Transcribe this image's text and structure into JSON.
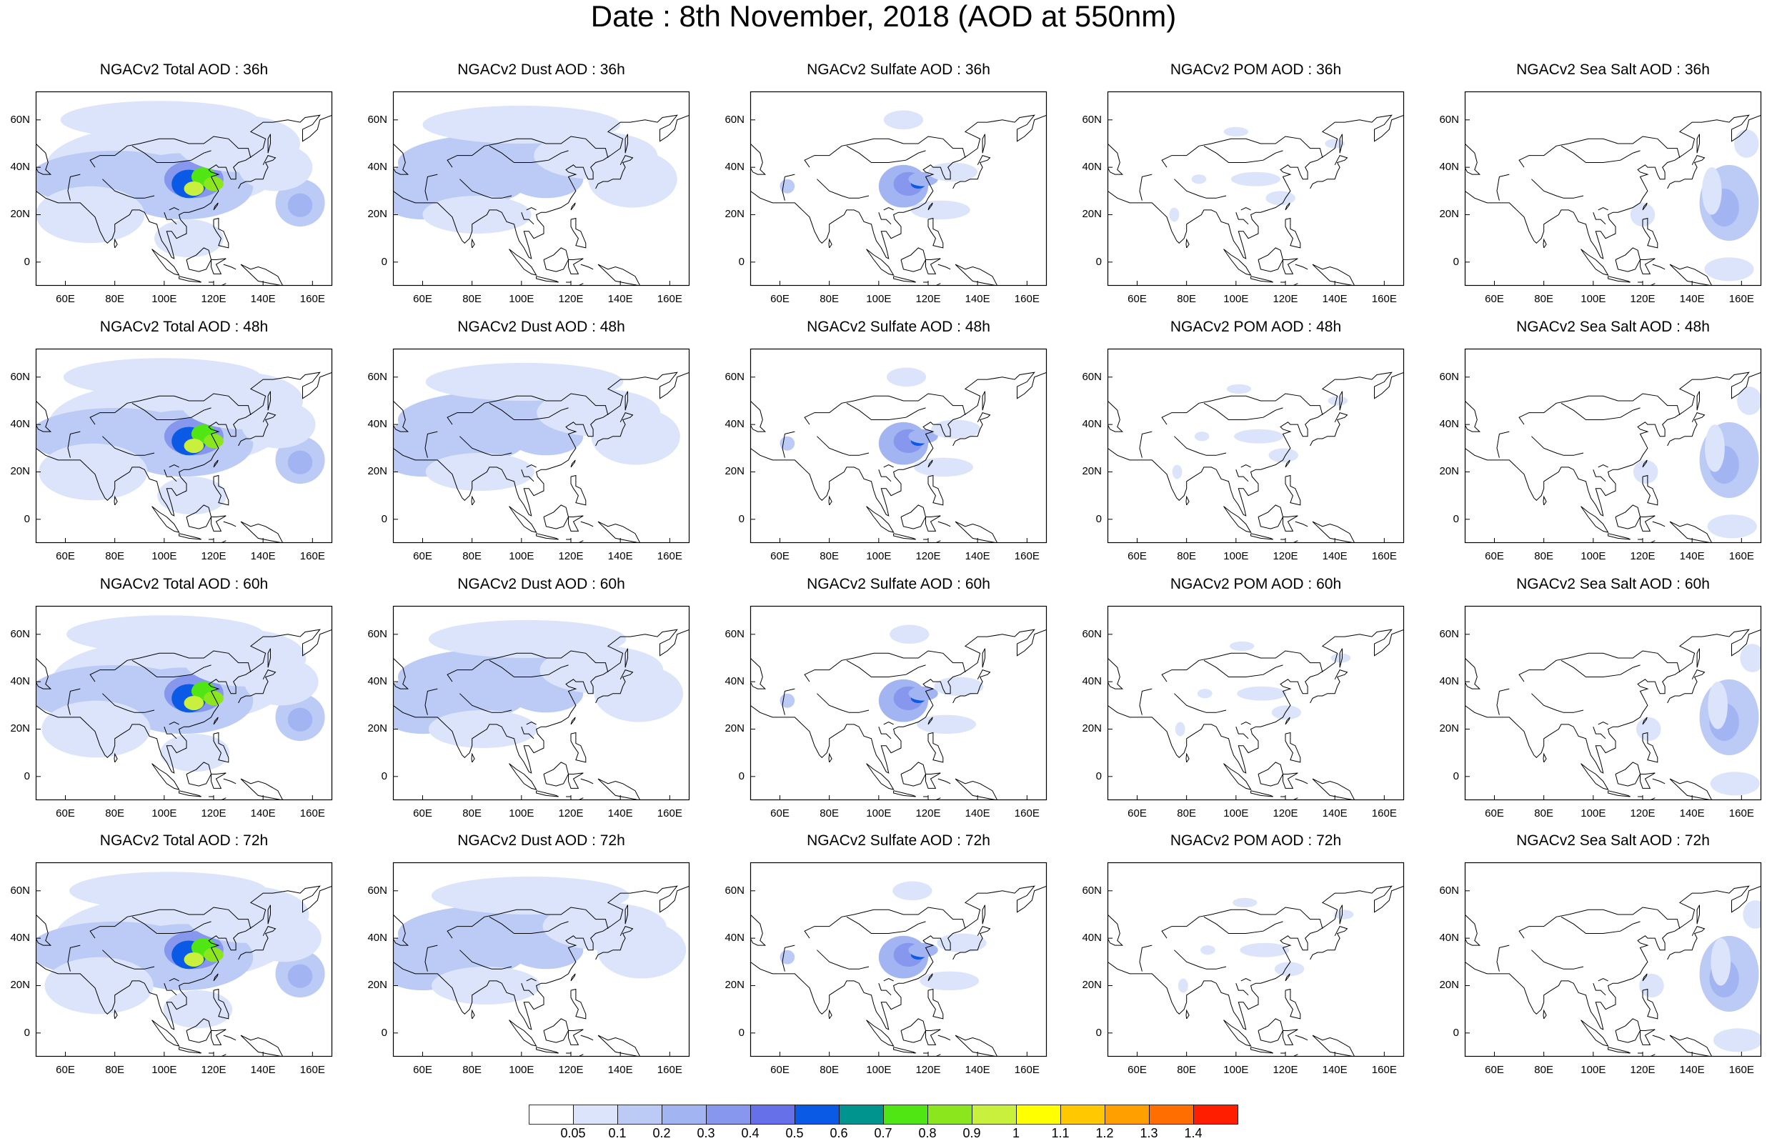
{
  "title": "Date : 8th November, 2018 (AOD at 550nm)",
  "columns": [
    "Total",
    "Dust",
    "Sulfate",
    "POM",
    "Sea Salt"
  ],
  "panels": [
    [
      "NGACv2 Total AOD : 36h",
      "NGACv2 Dust AOD : 36h",
      "NGACv2 Sulfate AOD : 36h",
      "NGACv2 POM AOD : 36h",
      "NGACv2 Sea Salt AOD : 36h"
    ],
    [
      "NGACv2 Total AOD : 48h",
      "NGACv2 Dust AOD : 48h",
      "NGACv2 Sulfate AOD : 48h",
      "NGACv2 POM AOD : 48h",
      "NGACv2 Sea Salt AOD : 48h"
    ],
    [
      "NGACv2 Total AOD : 60h",
      "NGACv2 Dust AOD : 60h",
      "NGACv2 Sulfate AOD : 60h",
      "NGACv2 POM AOD : 60h",
      "NGACv2 Sea Salt AOD : 60h"
    ],
    [
      "NGACv2 Total AOD : 72h",
      "NGACv2 Dust AOD : 72h",
      "NGACv2 Sulfate AOD : 72h",
      "NGACv2 POM AOD : 72h",
      "NGACv2 Sea Salt  AOD : 72h"
    ]
  ],
  "lat_labels": [
    "60N",
    "40N",
    "20N",
    "0"
  ],
  "lon_labels": [
    "60E",
    "80E",
    "100E",
    "120E",
    "140E",
    "160E"
  ],
  "colorbar": {
    "labels": [
      "0.05",
      "0.1",
      "0.2",
      "0.3",
      "0.4",
      "0.5",
      "0.6",
      "0.7",
      "0.8",
      "0.9",
      "1",
      "1.1",
      "1.2",
      "1.3",
      "1.4"
    ],
    "colors": [
      "#ffffff",
      "#dbe4fa",
      "#bccbf6",
      "#a2b5f2",
      "#8797ee",
      "#6670e8",
      "#0a5ae6",
      "#00948e",
      "#50e614",
      "#8ce61e",
      "#c8f03c",
      "#ffff00",
      "#ffc800",
      "#ffa000",
      "#ff6e00",
      "#ff1e00"
    ]
  }
}
